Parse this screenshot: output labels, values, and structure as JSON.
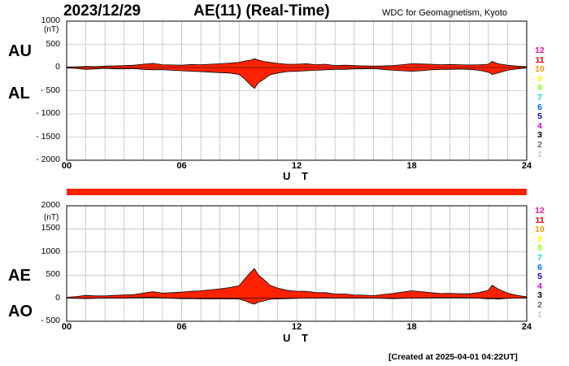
{
  "header": {
    "date": "2023/12/29",
    "title": "AE(11) (Real-Time)",
    "organization": "WDC for Geomagnetism, Kyoto"
  },
  "footer": {
    "created": "[Created at 2025-04-01 04:22UT]"
  },
  "legend": [
    "12",
    "11",
    "10",
    "9",
    "8",
    "7",
    "6",
    "5",
    "4",
    "3",
    "2",
    "1"
  ],
  "legend_colors": [
    "#ff1493",
    "#ff0000",
    "#ff9900",
    "#ffff00",
    "#99ff00",
    "#00dddd",
    "#0066ff",
    "#0000cc",
    "#cc00cc",
    "#000000",
    "#666666",
    "#cccccc"
  ],
  "colors": {
    "fill": "#ff2200",
    "outline": "#000000",
    "grid": "#aaaaaa",
    "bar": "#ff2200"
  },
  "chart_data": [
    {
      "type": "area",
      "panel": "AU/AL",
      "upper_label": "AU",
      "lower_label": "AL",
      "unit": "(nT)",
      "xlabel": "U T",
      "xlim": [
        0,
        24
      ],
      "ylim": [
        -2000,
        1000
      ],
      "yticks": [
        1000,
        500,
        0,
        -500,
        -1000,
        -1500,
        -2000
      ],
      "ytick_labels": [
        "1000",
        "500",
        "0",
        "- 500",
        "- 1000",
        "- 1500",
        "- 2000"
      ],
      "xticks": [
        0,
        6,
        12,
        18,
        24
      ],
      "xtick_labels": [
        "00",
        "06",
        "12",
        "18",
        "24"
      ],
      "grid": true,
      "series": [
        {
          "name": "AU",
          "x": [
            0,
            0.5,
            1,
            1.5,
            2,
            2.5,
            3,
            3.5,
            4,
            4.5,
            5,
            5.5,
            6,
            6.5,
            7,
            7.5,
            8,
            8.5,
            9,
            9.3,
            9.6,
            9.8,
            10,
            10.3,
            10.6,
            11,
            11.5,
            12,
            12.5,
            13,
            13.5,
            14,
            14.5,
            15,
            15.5,
            16,
            16.5,
            17,
            17.5,
            18,
            18.5,
            19,
            19.5,
            20,
            20.5,
            21,
            21.5,
            22,
            22.2,
            22.5,
            23,
            23.5,
            24
          ],
          "values": [
            10,
            15,
            25,
            20,
            30,
            35,
            40,
            50,
            70,
            90,
            60,
            55,
            50,
            65,
            60,
            70,
            80,
            95,
            110,
            140,
            160,
            190,
            160,
            130,
            110,
            90,
            70,
            70,
            80,
            60,
            70,
            40,
            50,
            40,
            35,
            30,
            35,
            40,
            60,
            80,
            75,
            70,
            60,
            65,
            60,
            55,
            60,
            70,
            130,
            80,
            50,
            30,
            20
          ]
        },
        {
          "name": "AL",
          "x": [
            0,
            0.5,
            1,
            1.5,
            2,
            2.5,
            3,
            3.5,
            4,
            4.5,
            5,
            5.5,
            6,
            6.5,
            7,
            7.5,
            8,
            8.5,
            9,
            9.3,
            9.6,
            9.8,
            10,
            10.3,
            10.6,
            11,
            11.5,
            12,
            12.5,
            13,
            13.5,
            14,
            14.5,
            15,
            15.5,
            16,
            16.5,
            17,
            17.5,
            18,
            18.5,
            19,
            19.5,
            20,
            20.5,
            21,
            21.5,
            22,
            22.2,
            22.5,
            23,
            23.5,
            24
          ],
          "values": [
            -10,
            -20,
            -40,
            -30,
            -20,
            -30,
            -30,
            -25,
            -40,
            -50,
            -45,
            -60,
            -70,
            -80,
            -90,
            -100,
            -110,
            -120,
            -150,
            -250,
            -380,
            -450,
            -330,
            -250,
            -160,
            -120,
            -90,
            -80,
            -70,
            -60,
            -50,
            -40,
            -40,
            -30,
            -30,
            -25,
            -40,
            -60,
            -70,
            -80,
            -70,
            -50,
            -40,
            -40,
            -35,
            -40,
            -60,
            -100,
            -150,
            -120,
            -60,
            -30,
            -10
          ]
        }
      ]
    },
    {
      "type": "area",
      "panel": "AE/AO",
      "upper_label": "AE",
      "lower_label": "AO",
      "unit": "(nT)",
      "xlabel": "U T",
      "xlim": [
        0,
        24
      ],
      "ylim": [
        -500,
        2000
      ],
      "yticks": [
        2000,
        1500,
        1000,
        500,
        0,
        -500
      ],
      "ytick_labels": [
        "2000",
        "1500",
        "1000",
        "500",
        "0",
        "- 500"
      ],
      "xticks": [
        0,
        6,
        12,
        18,
        24
      ],
      "xtick_labels": [
        "00",
        "06",
        "12",
        "18",
        "24"
      ],
      "grid": true,
      "series": [
        {
          "name": "AE",
          "x": [
            0,
            0.5,
            1,
            1.5,
            2,
            2.5,
            3,
            3.5,
            4,
            4.5,
            5,
            5.5,
            6,
            6.5,
            7,
            7.5,
            8,
            8.5,
            9,
            9.3,
            9.6,
            9.8,
            10,
            10.3,
            10.6,
            11,
            11.5,
            12,
            12.5,
            13,
            13.5,
            14,
            14.5,
            15,
            15.5,
            16,
            16.5,
            17,
            17.5,
            18,
            18.5,
            19,
            19.5,
            20,
            20.5,
            21,
            21.5,
            22,
            22.2,
            22.5,
            23,
            23.5,
            24
          ],
          "values": [
            20,
            35,
            60,
            50,
            50,
            60,
            70,
            75,
            110,
            140,
            110,
            120,
            130,
            150,
            160,
            180,
            200,
            230,
            270,
            420,
            560,
            640,
            500,
            400,
            280,
            220,
            170,
            150,
            150,
            120,
            120,
            90,
            90,
            70,
            65,
            55,
            80,
            100,
            130,
            160,
            140,
            120,
            100,
            105,
            95,
            95,
            120,
            170,
            280,
            200,
            110,
            60,
            30
          ]
        },
        {
          "name": "AO",
          "x": [
            0,
            0.5,
            1,
            1.5,
            2,
            2.5,
            3,
            3.5,
            4,
            4.5,
            5,
            5.5,
            6,
            6.5,
            7,
            7.5,
            8,
            8.5,
            9,
            9.3,
            9.6,
            9.8,
            10,
            10.3,
            10.6,
            11,
            11.5,
            12,
            12.5,
            13,
            13.5,
            14,
            14.5,
            15,
            15.5,
            16,
            16.5,
            17,
            17.5,
            18,
            18.5,
            19,
            19.5,
            20,
            20.5,
            21,
            21.5,
            22,
            22.2,
            22.5,
            23,
            23.5,
            24
          ],
          "values": [
            0,
            -3,
            -8,
            -5,
            5,
            3,
            5,
            12,
            15,
            20,
            8,
            -3,
            -10,
            -8,
            -15,
            -15,
            -15,
            -12,
            -20,
            -55,
            -110,
            -130,
            -85,
            -60,
            -25,
            -15,
            -10,
            -5,
            5,
            0,
            10,
            0,
            5,
            5,
            3,
            3,
            -3,
            -10,
            -5,
            0,
            3,
            10,
            10,
            12,
            12,
            8,
            0,
            -15,
            -10,
            -20,
            -5,
            0,
            5
          ]
        }
      ]
    }
  ]
}
